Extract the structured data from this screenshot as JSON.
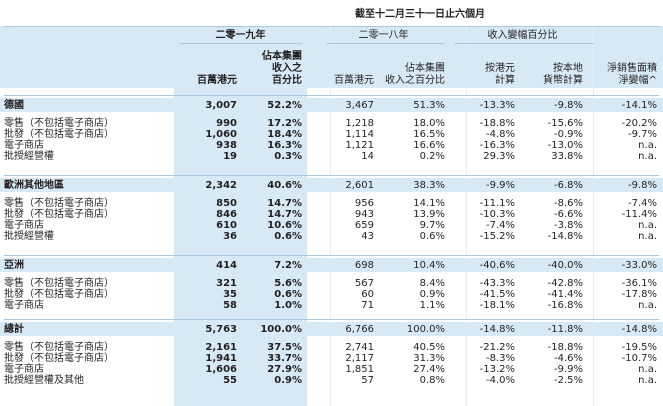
{
  "header": {
    "period": "截至十二月三十一日止六個月",
    "year2019": "二零一九年",
    "year2018": "二零一八年",
    "change_pct": "收入變幅百分比",
    "col_hkd_2019": "百萬港元",
    "col_share_2019": [
      "佔本集團",
      "收入之",
      "百分比"
    ],
    "col_hkd_2018": "百萬港元",
    "col_share_2018": [
      "佔本集團",
      "收入之百分比"
    ],
    "col_hkd_basis": [
      "按港元",
      "計算"
    ],
    "col_local_basis": [
      "按本地",
      "貨幣計算"
    ],
    "col_net_area": [
      "淨銷售面積",
      "淨變幅^"
    ]
  },
  "sections": [
    {
      "name": "德國",
      "total": [
        "3,007",
        "52.2%",
        "3,467",
        "51.3%",
        "-13.3%",
        "-9.8%",
        "-14.1%"
      ],
      "rows": [
        {
          "label": "零售（不包括電子商店）",
          "values": [
            "990",
            "17.2%",
            "1,218",
            "18.0%",
            "-18.8%",
            "-15.6%",
            "-20.2%"
          ]
        },
        {
          "label": "批發（不包括電子商店）",
          "values": [
            "1,060",
            "18.4%",
            "1,114",
            "16.5%",
            "-4.8%",
            "-0.9%",
            "-9.7%"
          ]
        },
        {
          "label": "電子商店",
          "values": [
            "938",
            "16.3%",
            "1,121",
            "16.6%",
            "-16.3%",
            "-13.0%",
            "n.a."
          ]
        },
        {
          "label": "批授經營權",
          "values": [
            "19",
            "0.3%",
            "14",
            "0.2%",
            "29.3%",
            "33.8%",
            "n.a."
          ]
        }
      ]
    },
    {
      "name": "歐洲其他地區",
      "total": [
        "2,342",
        "40.6%",
        "2,601",
        "38.3%",
        "-9.9%",
        "-6.8%",
        "-9.8%"
      ],
      "rows": [
        {
          "label": "零售（不包括電子商店）",
          "values": [
            "850",
            "14.7%",
            "956",
            "14.1%",
            "-11.1%",
            "-8.6%",
            "-7.4%"
          ]
        },
        {
          "label": "批發（不包括電子商店）",
          "values": [
            "846",
            "14.7%",
            "943",
            "13.9%",
            "-10.3%",
            "-6.6%",
            "-11.4%"
          ]
        },
        {
          "label": "電子商店",
          "values": [
            "610",
            "10.6%",
            "659",
            "9.7%",
            "-7.4%",
            "-3.8%",
            "n.a."
          ]
        },
        {
          "label": "批授經營權",
          "values": [
            "36",
            "0.6%",
            "43",
            "0.6%",
            "-15.2%",
            "-14.8%",
            "n.a."
          ]
        }
      ]
    },
    {
      "name": "亞洲",
      "total": [
        "414",
        "7.2%",
        "698",
        "10.4%",
        "-40.6%",
        "-40.0%",
        "-33.0%"
      ],
      "rows": [
        {
          "label": "零售（不包括電子商店）",
          "values": [
            "321",
            "5.6%",
            "567",
            "8.4%",
            "-43.3%",
            "-42.8%",
            "-36.1%"
          ]
        },
        {
          "label": "批發（不包括電子商店）",
          "values": [
            "35",
            "0.6%",
            "60",
            "0.9%",
            "-41.5%",
            "-41.4%",
            "-17.8%"
          ]
        },
        {
          "label": "電子商店",
          "values": [
            "58",
            "1.0%",
            "71",
            "1.1%",
            "-18.1%",
            "-16.8%",
            "n.a."
          ]
        }
      ]
    },
    {
      "name": "總計",
      "total": [
        "5,763",
        "100.0%",
        "6,766",
        "100.0%",
        "-14.8%",
        "-11.8%",
        "-14.8%"
      ],
      "rows": [
        {
          "label": "零售（不包括電子商店）",
          "values": [
            "2,161",
            "37.5%",
            "2,741",
            "40.5%",
            "-21.2%",
            "-18.8%",
            "-19.5%"
          ]
        },
        {
          "label": "批發（不包括電子商店）",
          "values": [
            "1,941",
            "33.7%",
            "2,117",
            "31.3%",
            "-8.3%",
            "-4.6%",
            "-10.7%"
          ]
        },
        {
          "label": "電子商店",
          "values": [
            "1,606",
            "27.9%",
            "1,851",
            "27.4%",
            "-13.2%",
            "-9.9%",
            "n.a."
          ]
        },
        {
          "label": "批授經營權及其他",
          "values": [
            "55",
            "0.9%",
            "57",
            "0.8%",
            "-4.0%",
            "-2.5%",
            "n.a."
          ]
        }
      ]
    }
  ]
}
